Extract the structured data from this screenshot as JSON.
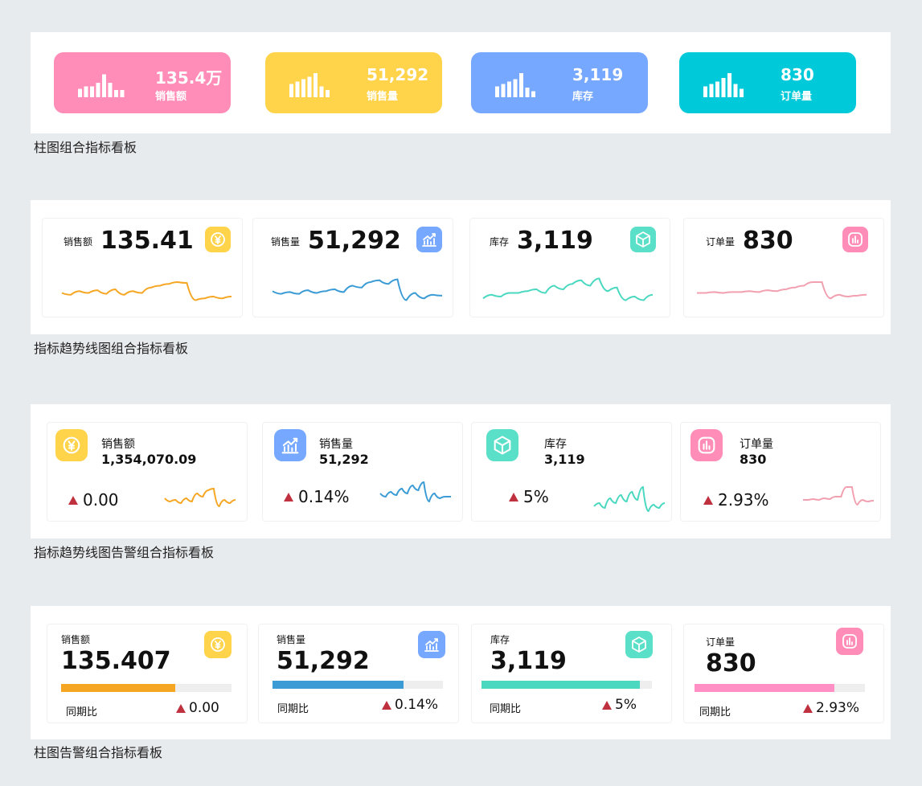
{
  "section1": {
    "caption": "柱图组合指标看板",
    "cards": [
      {
        "value": "135.4万",
        "label": "销售额",
        "color": "#ff8db7",
        "bars": [
          0.35,
          0.45,
          0.45,
          0.6,
          0.95,
          0.6,
          0.3,
          0.3
        ]
      },
      {
        "value": "51,292",
        "label": "销售量",
        "color": "#ffd34a",
        "bars": [
          0.55,
          0.65,
          0.75,
          0.85,
          1.0,
          0.45,
          0.3
        ]
      },
      {
        "value": "3,119",
        "label": "库存",
        "color": "#76a8ff",
        "bars": [
          0.45,
          0.55,
          0.65,
          0.75,
          1.0,
          0.4,
          0.25
        ]
      },
      {
        "value": "830",
        "label": "订单量",
        "color": "#00c9d9",
        "bars": [
          0.45,
          0.55,
          0.65,
          0.8,
          1.0,
          0.55,
          0.35
        ]
      }
    ]
  },
  "section2": {
    "caption": "指标趋势线图组合指标看板",
    "cards": [
      {
        "label": "销售额",
        "value": "135.41",
        "icon": "yuan-icon",
        "color": "#f5a623",
        "iconColor": "#ffd34a",
        "spark": [
          20,
          22,
          18,
          20,
          17,
          21,
          16,
          22,
          18,
          20,
          14,
          12,
          10,
          8,
          9,
          28,
          26,
          24,
          26,
          24
        ]
      },
      {
        "label": "销售量",
        "value": "51,292",
        "icon": "trend-chart-icon",
        "color": "#3a9bd5",
        "iconColor": "#76a8ff",
        "spark": [
          18,
          21,
          19,
          21,
          17,
          20,
          18,
          16,
          19,
          12,
          14,
          8,
          6,
          10,
          5,
          28,
          20,
          26,
          22,
          23
        ]
      },
      {
        "label": "库存",
        "value": "3,119",
        "icon": "cube-icon",
        "color": "#4ad8c0",
        "iconColor": "#5ae0c8",
        "spark": [
          26,
          22,
          24,
          20,
          20,
          18,
          16,
          20,
          12,
          16,
          10,
          6,
          12,
          4,
          18,
          14,
          28,
          24,
          28,
          22
        ]
      },
      {
        "label": "订单量",
        "value": "830",
        "icon": "bar-chart-icon",
        "color": "#f2a0b0",
        "iconColor": "#ff8db7",
        "spark": [
          20,
          20,
          19,
          20,
          19,
          19,
          18,
          19,
          17,
          18,
          16,
          14,
          12,
          8,
          8,
          26,
          22,
          24,
          23,
          22
        ]
      }
    ]
  },
  "section3": {
    "caption": "指标趋势线图告警组合指标看板",
    "cards": [
      {
        "label": "销售额",
        "value": "1,354,070.09",
        "change": "0.00",
        "icon": "yuan-icon",
        "color": "#f5a623",
        "iconColor": "#ffd34a",
        "spark": [
          20,
          24,
          22,
          26,
          20,
          24,
          14,
          18,
          10,
          8,
          30,
          22,
          26,
          22
        ]
      },
      {
        "label": "销售量",
        "value": "51,292",
        "change": "0.14%",
        "icon": "trend-chart-icon",
        "color": "#3a9bd5",
        "iconColor": "#76a8ff",
        "spark": [
          18,
          22,
          16,
          20,
          12,
          18,
          8,
          14,
          4,
          28,
          18,
          24,
          22,
          22
        ]
      },
      {
        "label": "库存",
        "value": "3,119",
        "change": "5%",
        "icon": "cube-icon",
        "color": "#4ad8c0",
        "iconColor": "#5ae0c8",
        "spark": [
          28,
          24,
          30,
          18,
          24,
          14,
          22,
          10,
          20,
          4,
          34,
          26,
          30,
          24
        ]
      },
      {
        "label": "订单量",
        "value": "830",
        "change": "2.93%",
        "icon": "bar-chart-icon",
        "color": "#f2a0b0",
        "iconColor": "#ff8db7",
        "spark": [
          24,
          24,
          23,
          24,
          22,
          23,
          20,
          20,
          8,
          8,
          30,
          24,
          26,
          25
        ]
      }
    ]
  },
  "section4": {
    "caption": "柱图告警组合指标看板",
    "yoy_label": "同期比",
    "cards": [
      {
        "label": "销售额",
        "value": "135.407",
        "change": "0.00",
        "icon": "yuan-icon",
        "color": "#f5a623",
        "iconColor": "#ffd34a",
        "progress": 0.67
      },
      {
        "label": "销售量",
        "value": "51,292",
        "change": "0.14%",
        "icon": "trend-chart-icon",
        "color": "#3a9bd5",
        "iconColor": "#76a8ff",
        "progress": 0.77
      },
      {
        "label": "库存",
        "value": "3,119",
        "change": "5%",
        "icon": "cube-icon",
        "color": "#4ad8c0",
        "iconColor": "#5ae0c8",
        "progress": 0.93
      },
      {
        "label": "订单量",
        "value": "830",
        "change": "2.93%",
        "icon": "bar-chart-icon",
        "color": "#ff8fc5",
        "iconColor": "#ff8db7",
        "progress": 0.82
      }
    ]
  }
}
